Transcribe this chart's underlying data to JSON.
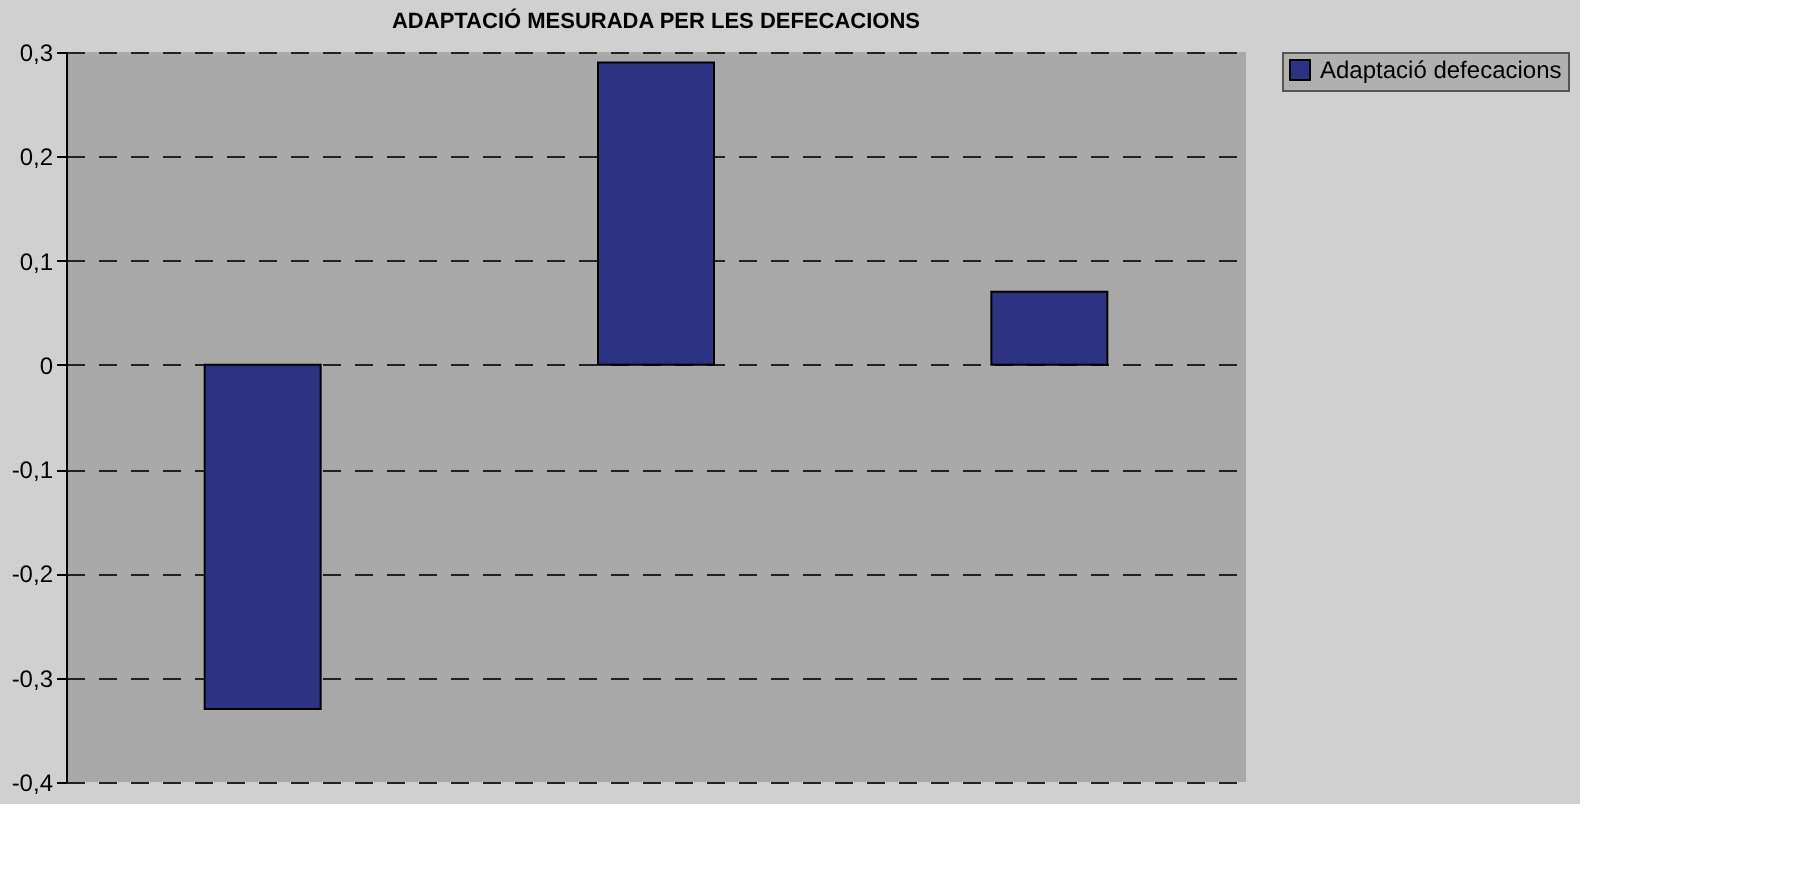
{
  "chart_data": {
    "type": "bar",
    "title": "ADAPTACIÓ MESURADA PER LES DEFECACIONS",
    "categories": [
      null,
      null,
      null
    ],
    "series": [
      {
        "name": "Adaptació defecacions",
        "color": "#2e3282",
        "values": [
          -0.33,
          0.29,
          0.07
        ]
      }
    ],
    "ylim": [
      -0.4,
      0.3
    ],
    "yticks": [
      {
        "value": -0.4,
        "label": "-0,4"
      },
      {
        "value": -0.3,
        "label": "-0,3"
      },
      {
        "value": -0.2,
        "label": "-0,2"
      },
      {
        "value": -0.1,
        "label": "-0,1"
      },
      0,
      {
        "value": 0.1,
        "label": "0,1"
      },
      {
        "value": 0.2,
        "label": "0,2"
      },
      {
        "value": 0.3,
        "label": "0,3"
      }
    ],
    "grid": "y",
    "legend": "right"
  }
}
